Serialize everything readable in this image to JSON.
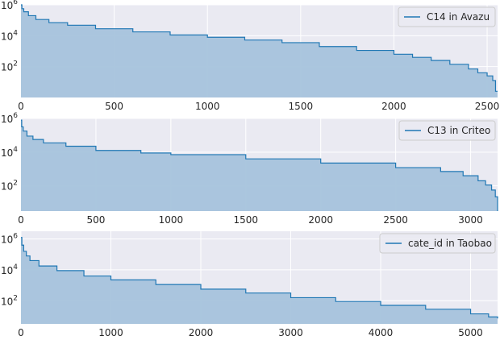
{
  "chart_data": [
    {
      "type": "area",
      "yscale": "log",
      "series_name": "C14 in Avazu",
      "xlim": [
        0,
        2556
      ],
      "xticks": [
        0,
        500,
        1000,
        1500,
        2000,
        2500
      ],
      "xtick_labels": [
        "0",
        "500",
        "1000",
        "1500",
        "2000",
        "2500"
      ],
      "ylim_log10": [
        0,
        6
      ],
      "yticks": [
        {
          "label": "10",
          "exp": "6",
          "log": 6
        },
        {
          "label": "10",
          "exp": "4",
          "log": 4
        },
        {
          "label": "10",
          "exp": "2",
          "log": 2
        }
      ],
      "points": [
        [
          0,
          6.0
        ],
        [
          5,
          5.75
        ],
        [
          15,
          5.55
        ],
        [
          40,
          5.3
        ],
        [
          80,
          5.05
        ],
        [
          150,
          4.85
        ],
        [
          250,
          4.68
        ],
        [
          400,
          4.45
        ],
        [
          600,
          4.25
        ],
        [
          800,
          4.05
        ],
        [
          1000,
          3.9
        ],
        [
          1200,
          3.72
        ],
        [
          1400,
          3.55
        ],
        [
          1600,
          3.3
        ],
        [
          1800,
          3.05
        ],
        [
          2000,
          2.8
        ],
        [
          2100,
          2.6
        ],
        [
          2200,
          2.4
        ],
        [
          2300,
          2.15
        ],
        [
          2400,
          1.85
        ],
        [
          2450,
          1.6
        ],
        [
          2500,
          1.4
        ],
        [
          2530,
          1.1
        ],
        [
          2545,
          0.4
        ],
        [
          2556,
          0.4
        ]
      ],
      "grid": true,
      "legend_position": "top-right"
    },
    {
      "type": "area",
      "yscale": "log",
      "series_name": "C13 in Criteo",
      "xlim": [
        0,
        3180
      ],
      "xticks": [
        0,
        500,
        1000,
        1500,
        2000,
        2500,
        3000
      ],
      "xtick_labels": [
        "0",
        "500",
        "1000",
        "1500",
        "2000",
        "2500",
        "3000"
      ],
      "ylim_log10": [
        0.5,
        6
      ],
      "yticks": [
        {
          "label": "10",
          "exp": "6",
          "log": 6
        },
        {
          "label": "10",
          "exp": "4",
          "log": 4
        },
        {
          "label": "10",
          "exp": "2",
          "log": 2
        }
      ],
      "points": [
        [
          0,
          5.9
        ],
        [
          5,
          5.5
        ],
        [
          15,
          5.25
        ],
        [
          40,
          4.95
        ],
        [
          80,
          4.75
        ],
        [
          150,
          4.55
        ],
        [
          300,
          4.35
        ],
        [
          500,
          4.1
        ],
        [
          800,
          3.95
        ],
        [
          1000,
          3.85
        ],
        [
          1500,
          3.6
        ],
        [
          2000,
          3.35
        ],
        [
          2500,
          3.08
        ],
        [
          2800,
          2.85
        ],
        [
          2950,
          2.6
        ],
        [
          3050,
          2.3
        ],
        [
          3100,
          2.05
        ],
        [
          3140,
          1.75
        ],
        [
          3165,
          1.35
        ],
        [
          3180,
          0.5
        ]
      ],
      "grid": true,
      "legend_position": "top-right"
    },
    {
      "type": "area",
      "yscale": "log",
      "series_name": "cate_id in Taobao",
      "xlim": [
        0,
        5300
      ],
      "xticks": [
        0,
        1000,
        2000,
        3000,
        4000,
        5000
      ],
      "xtick_labels": [
        "0",
        "1000",
        "2000",
        "3000",
        "4000",
        "5000"
      ],
      "ylim_log10": [
        0.5,
        6.5
      ],
      "yticks": [
        {
          "label": "10",
          "exp": "6",
          "log": 6
        },
        {
          "label": "10",
          "exp": "4",
          "log": 4
        },
        {
          "label": "10",
          "exp": "2",
          "log": 2
        }
      ],
      "points": [
        [
          0,
          6.1
        ],
        [
          10,
          5.6
        ],
        [
          30,
          5.2
        ],
        [
          60,
          4.9
        ],
        [
          100,
          4.6
        ],
        [
          200,
          4.25
        ],
        [
          400,
          3.95
        ],
        [
          700,
          3.6
        ],
        [
          1000,
          3.35
        ],
        [
          1500,
          3.05
        ],
        [
          2000,
          2.75
        ],
        [
          2500,
          2.5
        ],
        [
          3000,
          2.2
        ],
        [
          3500,
          1.95
        ],
        [
          4000,
          1.7
        ],
        [
          4500,
          1.45
        ],
        [
          5000,
          1.15
        ],
        [
          5200,
          0.95
        ],
        [
          5300,
          0.85
        ]
      ],
      "grid": true,
      "legend_position": "top-right"
    }
  ],
  "colors": {
    "background": "#eaeaf2",
    "grid": "#ffffff",
    "line": "#1f77b4",
    "fill": "#a6c3dc",
    "text": "#262626"
  }
}
